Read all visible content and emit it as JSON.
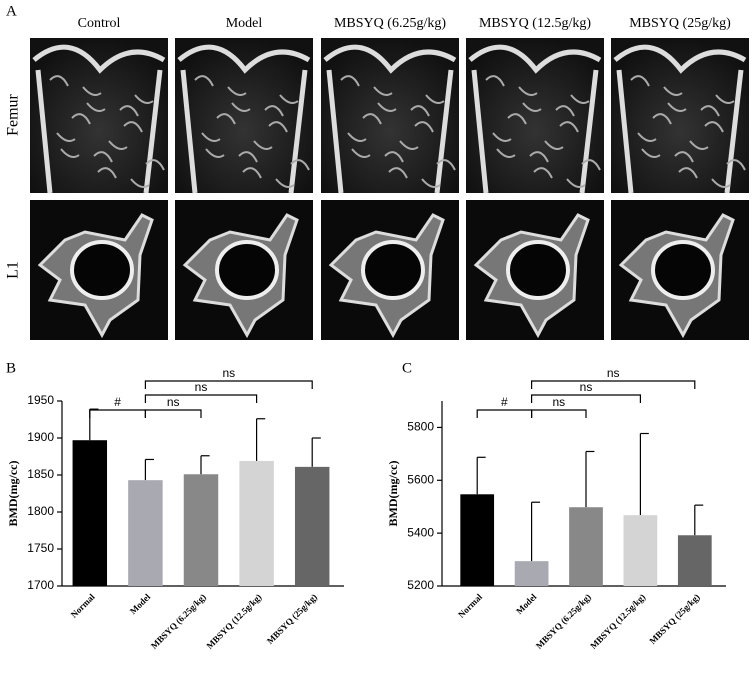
{
  "panel_labels": [
    "A",
    "B",
    "C"
  ],
  "images": {
    "columns": [
      "Control",
      "Model",
      "MBSYQ (6.25g/kg)",
      "MBSYQ (12.5g/kg)",
      "MBSYQ (25g/kg)"
    ],
    "rows": [
      "Femur",
      "L1"
    ]
  },
  "chart_data": [
    {
      "type": "bar",
      "y_label": "BMD(mg/cc)",
      "categories": [
        "Normal",
        "Model",
        "MBSYQ (6.25g/kg)",
        "MBSYQ (12.5g/kg)",
        "MBSYQ (25g/kg)"
      ],
      "values": [
        1897,
        1843,
        1851,
        1869,
        1861
      ],
      "errors": [
        42,
        28,
        25,
        57,
        39
      ],
      "colors": [
        "#000000",
        "#a9a9b1",
        "#888888",
        "#d4d4d4",
        "#666666"
      ],
      "ylim": [
        1700,
        1950
      ],
      "yticks": [
        1700,
        1750,
        1800,
        1850,
        1900,
        1950
      ],
      "annotations": [
        "#",
        "ns",
        "ns",
        "ns"
      ]
    },
    {
      "type": "bar",
      "y_label": "BMD(mg/cc)",
      "categories": [
        "Normal",
        "Model",
        "MBSYQ (6.25g/kg)",
        "MBSYQ (12.5g/kg)",
        "MBSYQ (25g/kg)"
      ],
      "values": [
        5547,
        5294,
        5498,
        5468,
        5392
      ],
      "errors": [
        140,
        223,
        211,
        309,
        114
      ],
      "colors": [
        "#000000",
        "#a9a9b1",
        "#888888",
        "#d4d4d4",
        "#666666"
      ],
      "ylim": [
        5200,
        5900
      ],
      "yticks": [
        5200,
        5400,
        5600,
        5800
      ],
      "annotations": [
        "#",
        "ns",
        "ns",
        "ns"
      ]
    }
  ]
}
